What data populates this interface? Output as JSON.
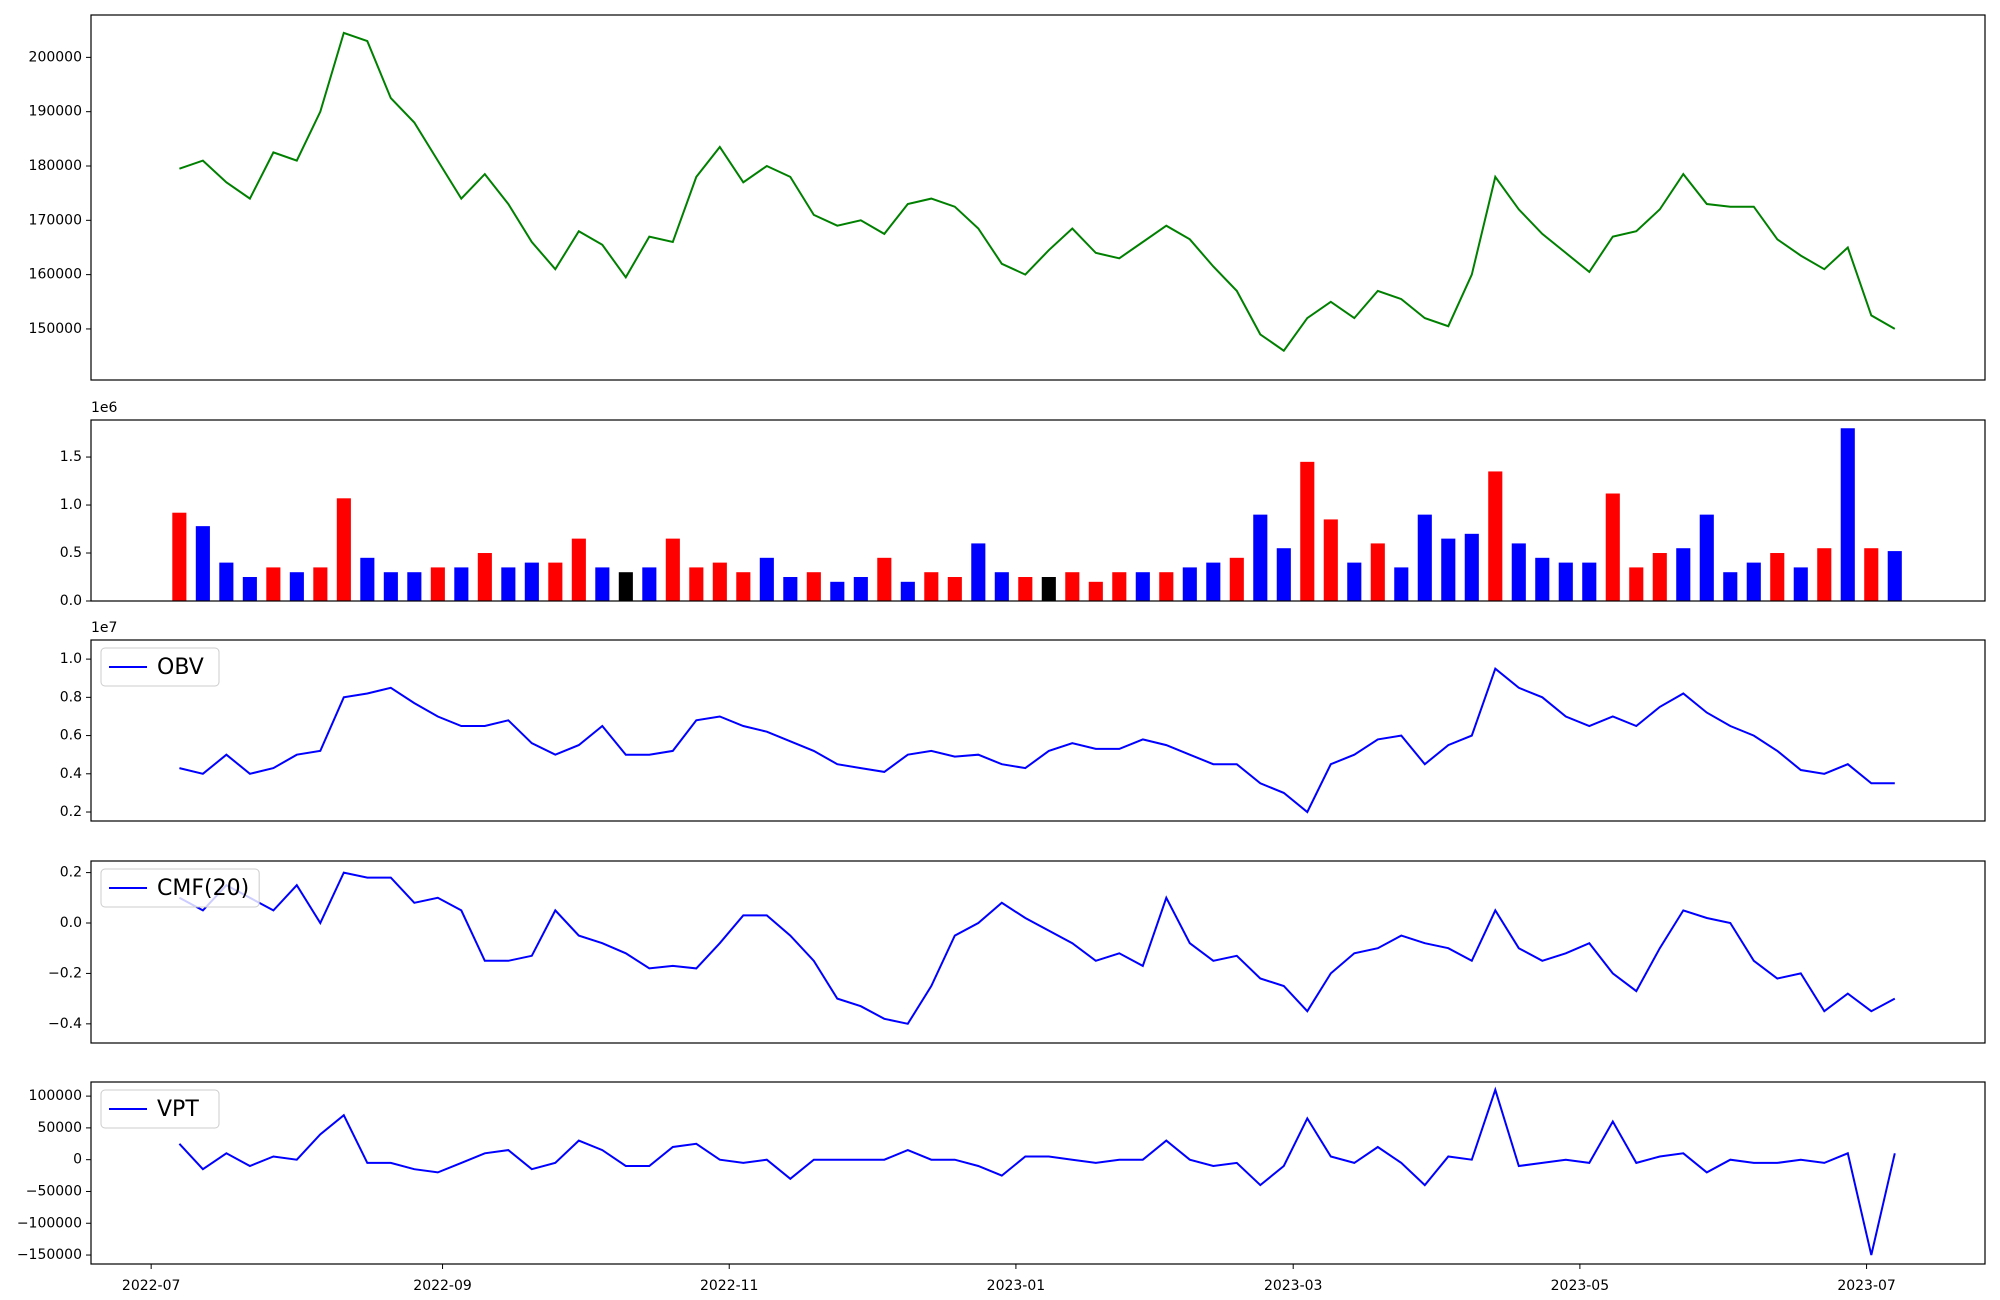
{
  "chart_data": [
    {
      "type": "line",
      "xlim": [
        -12.8,
        390.2
      ],
      "ylim": [
        140600,
        207800
      ],
      "yticks": [
        150000,
        160000,
        170000,
        180000,
        190000,
        200000
      ],
      "x": [
        6,
        11,
        16,
        21,
        26,
        31,
        36,
        41,
        46,
        51,
        56,
        61,
        66,
        71,
        76,
        81,
        86,
        91,
        96,
        101,
        106,
        111,
        116,
        121,
        126,
        131,
        136,
        141,
        146,
        151,
        156,
        161,
        166,
        171,
        176,
        181,
        186,
        191,
        196,
        201,
        206,
        211,
        216,
        221,
        226,
        231,
        236,
        241,
        246,
        251,
        256,
        261,
        266,
        271,
        276,
        281,
        286,
        291,
        296,
        301,
        306,
        311,
        316,
        321,
        326,
        331,
        336,
        341,
        346,
        351,
        356,
        361,
        366,
        371
      ],
      "series": [
        {
          "color": "#008000",
          "values": [
            179500,
            181000,
            177000,
            174000,
            182500,
            181000,
            190000,
            204500,
            203000,
            192500,
            188000,
            181000,
            174000,
            178500,
            173000,
            166000,
            161000,
            168000,
            165500,
            159500,
            167000,
            166000,
            178000,
            183500,
            177000,
            180000,
            178000,
            171000,
            169000,
            170000,
            167500,
            173000,
            174000,
            172500,
            168500,
            162000,
            160000,
            164500,
            168500,
            164000,
            163000,
            166000,
            169000,
            166500,
            161500,
            157000,
            149000,
            146000,
            152000,
            155000,
            152000,
            157000,
            155500,
            152000,
            150500,
            160000,
            178000,
            172000,
            167500,
            164000,
            160500,
            167000,
            168000,
            172000,
            178500,
            173000,
            172500,
            172500,
            166500,
            163500,
            161000,
            165000,
            152500,
            150000
          ]
        }
      ]
    },
    {
      "type": "bar",
      "offset_text": "1e6",
      "xlim": [
        -12.8,
        390.2
      ],
      "ylim": [
        0,
        1.886
      ],
      "yticks": [
        {
          "value": 0,
          "label": "0.0"
        },
        0.5,
        {
          "value": 1,
          "label": "1.0"
        },
        1.5
      ],
      "x": [
        6,
        11,
        16,
        21,
        26,
        31,
        36,
        41,
        46,
        51,
        56,
        61,
        66,
        71,
        76,
        81,
        86,
        91,
        96,
        101,
        106,
        111,
        116,
        121,
        126,
        131,
        136,
        141,
        146,
        151,
        156,
        161,
        166,
        171,
        176,
        181,
        186,
        191,
        196,
        201,
        206,
        211,
        216,
        221,
        226,
        231,
        236,
        241,
        246,
        251,
        256,
        261,
        266,
        271,
        276,
        281,
        286,
        291,
        296,
        301,
        306,
        311,
        316,
        321,
        326,
        331,
        336,
        341,
        346,
        351,
        356,
        361,
        366,
        371
      ],
      "values": [
        0.92,
        0.78,
        0.4,
        0.25,
        0.35,
        0.3,
        0.35,
        1.07,
        0.45,
        0.3,
        0.3,
        0.35,
        0.35,
        0.5,
        0.35,
        0.4,
        0.4,
        0.65,
        0.35,
        0.3,
        0.35,
        0.65,
        0.35,
        0.4,
        0.3,
        0.45,
        0.25,
        0.3,
        0.2,
        0.25,
        0.45,
        0.2,
        0.3,
        0.25,
        0.6,
        0.3,
        0.25,
        0.25,
        0.3,
        0.2,
        0.3,
        0.3,
        0.3,
        0.35,
        0.4,
        0.45,
        0.9,
        0.55,
        1.45,
        0.85,
        0.4,
        0.6,
        0.35,
        0.9,
        0.65,
        0.7,
        1.35,
        0.6,
        0.45,
        0.4,
        0.4,
        1.12,
        0.35,
        0.5,
        0.55,
        0.9,
        0.3,
        0.4,
        0.5,
        0.35,
        0.55,
        1.8,
        0.55,
        0.52
      ],
      "colors": [
        "red",
        "blue",
        "blue",
        "blue",
        "red",
        "blue",
        "red",
        "red",
        "blue",
        "blue",
        "blue",
        "red",
        "blue",
        "red",
        "blue",
        "blue",
        "red",
        "red",
        "blue",
        "black",
        "blue",
        "red",
        "red",
        "red",
        "red",
        "blue",
        "blue",
        "red",
        "blue",
        "blue",
        "red",
        "blue",
        "red",
        "red",
        "blue",
        "blue",
        "red",
        "black",
        "red",
        "red",
        "red",
        "blue",
        "red",
        "blue",
        "blue",
        "red",
        "blue",
        "blue",
        "red",
        "red",
        "blue",
        "red",
        "blue",
        "blue",
        "blue",
        "blue",
        "red",
        "blue",
        "blue",
        "blue",
        "blue",
        "red",
        "red",
        "red",
        "blue",
        "blue",
        "blue",
        "blue",
        "red",
        "blue",
        "red",
        "blue",
        "red",
        "blue"
      ]
    },
    {
      "type": "line",
      "offset_text": "1e7",
      "legend": "upper left",
      "xlim": [
        -12.8,
        390.2
      ],
      "ylim": [
        0.153,
        1.1
      ],
      "yticks": [
        0.2,
        0.4,
        0.6,
        0.8,
        {
          "value": 1,
          "label": "1.0"
        }
      ],
      "x": [
        6,
        11,
        16,
        21,
        26,
        31,
        36,
        41,
        46,
        51,
        56,
        61,
        66,
        71,
        76,
        81,
        86,
        91,
        96,
        101,
        106,
        111,
        116,
        121,
        126,
        131,
        136,
        141,
        146,
        151,
        156,
        161,
        166,
        171,
        176,
        181,
        186,
        191,
        196,
        201,
        206,
        211,
        216,
        221,
        226,
        231,
        236,
        241,
        246,
        251,
        256,
        261,
        266,
        271,
        276,
        281,
        286,
        291,
        296,
        301,
        306,
        311,
        316,
        321,
        326,
        331,
        336,
        341,
        346,
        351,
        356,
        361,
        366,
        371
      ],
      "series": [
        {
          "name": "OBV",
          "color": "#0000ff",
          "values": [
            0.43,
            0.4,
            0.5,
            0.4,
            0.43,
            0.5,
            0.52,
            0.8,
            0.82,
            0.85,
            0.77,
            0.7,
            0.65,
            0.65,
            0.68,
            0.56,
            0.5,
            0.55,
            0.65,
            0.5,
            0.5,
            0.52,
            0.68,
            0.7,
            0.65,
            0.62,
            0.57,
            0.52,
            0.45,
            0.43,
            0.41,
            0.5,
            0.52,
            0.49,
            0.5,
            0.45,
            0.43,
            0.52,
            0.56,
            0.53,
            0.53,
            0.58,
            0.55,
            0.5,
            0.45,
            0.45,
            0.35,
            0.3,
            0.2,
            0.45,
            0.5,
            0.58,
            0.6,
            0.45,
            0.55,
            0.6,
            0.95,
            0.85,
            0.8,
            0.7,
            0.65,
            0.7,
            0.65,
            0.75,
            0.82,
            0.72,
            0.65,
            0.6,
            0.52,
            0.42,
            0.4,
            0.45,
            0.35,
            0.35
          ]
        }
      ]
    },
    {
      "type": "line",
      "legend": "upper left",
      "xlim": [
        -12.8,
        390.2
      ],
      "ylim": [
        -0.476,
        0.246
      ],
      "yticks": [
        {
          "value": -0.4,
          "label": "−0.4"
        },
        {
          "value": -0.2,
          "label": "−0.2"
        },
        {
          "value": 0,
          "label": "0.0"
        },
        0.2
      ],
      "x": [
        6,
        11,
        16,
        21,
        26,
        31,
        36,
        41,
        46,
        51,
        56,
        61,
        66,
        71,
        76,
        81,
        86,
        91,
        96,
        101,
        106,
        111,
        116,
        121,
        126,
        131,
        136,
        141,
        146,
        151,
        156,
        161,
        166,
        171,
        176,
        181,
        186,
        191,
        196,
        201,
        206,
        211,
        216,
        221,
        226,
        231,
        236,
        241,
        246,
        251,
        256,
        261,
        266,
        271,
        276,
        281,
        286,
        291,
        296,
        301,
        306,
        311,
        316,
        321,
        326,
        331,
        336,
        341,
        346,
        351,
        356,
        361,
        366,
        371
      ],
      "series": [
        {
          "name": "CMF(20)",
          "color": "#0000ff",
          "values": [
            0.1,
            0.05,
            0.15,
            0.1,
            0.05,
            0.15,
            0.0,
            0.2,
            0.18,
            0.18,
            0.08,
            0.1,
            0.05,
            -0.15,
            -0.15,
            -0.13,
            0.05,
            -0.05,
            -0.08,
            -0.12,
            -0.18,
            -0.17,
            -0.18,
            -0.08,
            0.03,
            0.03,
            -0.05,
            -0.15,
            -0.3,
            -0.33,
            -0.38,
            -0.4,
            -0.25,
            -0.05,
            0.0,
            0.08,
            0.02,
            -0.03,
            -0.08,
            -0.15,
            -0.12,
            -0.17,
            0.1,
            -0.08,
            -0.15,
            -0.13,
            -0.22,
            -0.25,
            -0.35,
            -0.2,
            -0.12,
            -0.1,
            -0.05,
            -0.08,
            -0.1,
            -0.15,
            0.05,
            -0.1,
            -0.15,
            -0.12,
            -0.08,
            -0.2,
            -0.27,
            -0.1,
            0.05,
            0.02,
            0.0,
            -0.15,
            -0.22,
            -0.2,
            -0.35,
            -0.28,
            -0.35,
            -0.3
          ]
        }
      ]
    },
    {
      "type": "line",
      "legend": "upper left",
      "xlim": [
        -12.8,
        390.2
      ],
      "ylim": [
        -164100,
        122200
      ],
      "yticks": [
        {
          "value": -150000,
          "label": "−150000"
        },
        {
          "value": -100000,
          "label": "−100000"
        },
        {
          "value": -50000,
          "label": "−50000"
        },
        0,
        50000,
        100000
      ],
      "xticks": [
        {
          "value": 0,
          "label": "2022-07"
        },
        {
          "value": 62,
          "label": "2022-09"
        },
        {
          "value": 123,
          "label": "2022-11"
        },
        {
          "value": 184,
          "label": "2023-01"
        },
        {
          "value": 243,
          "label": "2023-03"
        },
        {
          "value": 304,
          "label": "2023-05"
        },
        {
          "value": 365,
          "label": "2023-07"
        }
      ],
      "x": [
        6,
        11,
        16,
        21,
        26,
        31,
        36,
        41,
        46,
        51,
        56,
        61,
        66,
        71,
        76,
        81,
        86,
        91,
        96,
        101,
        106,
        111,
        116,
        121,
        126,
        131,
        136,
        141,
        146,
        151,
        156,
        161,
        166,
        171,
        176,
        181,
        186,
        191,
        196,
        201,
        206,
        211,
        216,
        221,
        226,
        231,
        236,
        241,
        246,
        251,
        256,
        261,
        266,
        271,
        276,
        281,
        286,
        291,
        296,
        301,
        306,
        311,
        316,
        321,
        326,
        331,
        336,
        341,
        346,
        351,
        356,
        361,
        366,
        371
      ],
      "series": [
        {
          "name": "VPT",
          "color": "#0000ff",
          "values": [
            25000,
            -15000,
            10000,
            -10000,
            5000,
            0,
            40000,
            70000,
            -5000,
            -5000,
            -15000,
            -20000,
            -5000,
            10000,
            15000,
            -15000,
            -5000,
            30000,
            15000,
            -10000,
            -10000,
            20000,
            25000,
            0,
            -5000,
            0,
            -30000,
            0,
            0,
            0,
            0,
            15000,
            0,
            0,
            -10000,
            -25000,
            5000,
            5000,
            0,
            -5000,
            0,
            0,
            30000,
            0,
            -10000,
            -5000,
            -40000,
            -10000,
            65000,
            5000,
            -5000,
            20000,
            -5000,
            -40000,
            5000,
            0,
            110000,
            -10000,
            -5000,
            0,
            -5000,
            60000,
            -5000,
            5000,
            10000,
            -20000,
            0,
            -5000,
            -5000,
            0,
            -5000,
            10000,
            -150000,
            10000
          ]
        }
      ]
    }
  ]
}
